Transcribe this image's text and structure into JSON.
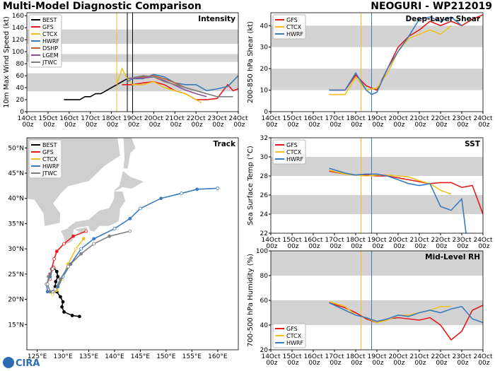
{
  "header": {
    "title": "Multi-Model Diagnostic Comparison",
    "storm": "NEOGURI - WP212019",
    "logo": "CIRA"
  },
  "chart_data": [
    {
      "type": "line",
      "title": "Intensity",
      "ylabel": "10m Max Wind Speed (kt)",
      "legend": "upper left",
      "xlim": [
        14,
        24
      ],
      "ylim": [
        0,
        165
      ],
      "xticks": [
        {
          "value": 14,
          "label": "14Oct 00z"
        },
        {
          "value": 15,
          "label": "15Oct 00z"
        },
        {
          "value": 16,
          "label": "16Oct 00z"
        },
        {
          "value": 17,
          "label": "17Oct 00z"
        },
        {
          "value": 18,
          "label": "18Oct 00z"
        },
        {
          "value": 19,
          "label": "19Oct 00z"
        },
        {
          "value": 20,
          "label": "20Oct 00z"
        },
        {
          "value": 21,
          "label": "21Oct 00z"
        },
        {
          "value": 22,
          "label": "22Oct 00z"
        },
        {
          "value": 23,
          "label": "23Oct 00z"
        },
        {
          "value": 24,
          "label": "24Oct 00z"
        }
      ],
      "yticks": [
        0,
        20,
        40,
        60,
        80,
        100,
        120,
        140,
        160
      ],
      "bands": [
        [
          34,
          64
        ],
        [
          83,
          96
        ],
        [
          113,
          137
        ]
      ],
      "vlines": [
        {
          "x": 18.25,
          "color": "#f0c020"
        },
        {
          "x": 18.75,
          "color": "#000000"
        },
        {
          "x": 19,
          "color": "#000000"
        }
      ],
      "series": [
        {
          "name": "BEST",
          "color": "#000000",
          "x": [
            15.75,
            16,
            16.25,
            16.5,
            16.75,
            17,
            17.25,
            17.5,
            17.75,
            18,
            18.25,
            18.5,
            18.75
          ],
          "values": [
            20,
            20,
            20,
            20,
            25,
            25,
            30,
            30,
            35,
            40,
            45,
            50,
            55
          ]
        },
        {
          "name": "GFS",
          "color": "#e41a1c",
          "x": [
            18.5,
            19,
            19.5,
            20,
            20.5,
            21,
            21.5,
            22,
            22.5,
            23,
            23.5,
            23.75,
            24
          ],
          "values": [
            45,
            45,
            48,
            50,
            45,
            35,
            30,
            20,
            20,
            22,
            45,
            35,
            38
          ]
        },
        {
          "name": "CTCX",
          "color": "#f0c020",
          "x": [
            18.25,
            18.5,
            18.75,
            19,
            19.5,
            20,
            20.5,
            21,
            21.5,
            22,
            22.25
          ],
          "values": [
            45,
            72,
            55,
            45,
            45,
            50,
            40,
            35,
            30,
            20,
            15
          ]
        },
        {
          "name": "HWRF",
          "color": "#3a7dbf",
          "x": [
            18.75,
            19,
            19.5,
            20,
            20.5,
            21,
            21.5,
            22,
            22.5,
            23,
            23.5,
            24
          ],
          "values": [
            50,
            55,
            55,
            62,
            58,
            48,
            45,
            45,
            35,
            38,
            42,
            60
          ]
        },
        {
          "name": "DSHP",
          "color": "#b8632b",
          "x": [
            18.75,
            19.5,
            20,
            20.5,
            21,
            21.5,
            22,
            22.5
          ],
          "values": [
            55,
            58,
            60,
            55,
            48,
            40,
            35,
            30
          ]
        },
        {
          "name": "LGEM",
          "color": "#8e4e9e",
          "x": [
            18.75,
            19.5,
            20,
            20.5,
            21,
            21.5,
            22,
            22.5
          ],
          "values": [
            55,
            56,
            58,
            52,
            44,
            36,
            30,
            25
          ]
        },
        {
          "name": "JTWC",
          "color": "#808080",
          "x": [
            18.75,
            19.5,
            20,
            20.5,
            21,
            21.5,
            22,
            22.5,
            23,
            23.75
          ],
          "values": [
            55,
            60,
            58,
            50,
            45,
            40,
            35,
            30,
            25,
            25
          ]
        }
      ]
    },
    {
      "type": "track",
      "title": "Track",
      "legend": "upper left",
      "xlim": [
        123,
        164
      ],
      "ylim": [
        10,
        52
      ],
      "xticks": [
        {
          "value": 125,
          "label": "125°E"
        },
        {
          "value": 130,
          "label": "130°E"
        },
        {
          "value": 135,
          "label": "135°E"
        },
        {
          "value": 140,
          "label": "140°E"
        },
        {
          "value": 145,
          "label": "145°E"
        },
        {
          "value": 150,
          "label": "150°E"
        },
        {
          "value": 155,
          "label": "155°E"
        },
        {
          "value": 160,
          "label": "160°E"
        }
      ],
      "yticks": [
        {
          "value": 15,
          "label": "15°N"
        },
        {
          "value": 20,
          "label": "20°N"
        },
        {
          "value": 25,
          "label": "25°N"
        },
        {
          "value": 30,
          "label": "30°N"
        },
        {
          "value": 35,
          "label": "35°N"
        },
        {
          "value": 40,
          "label": "40°N"
        },
        {
          "value": 45,
          "label": "45°N"
        },
        {
          "value": 50,
          "label": "50°N"
        }
      ],
      "series": [
        {
          "name": "BEST",
          "color": "#000000",
          "x": [
            133.2,
            131.8,
            130.2,
            129.8,
            130.0,
            129.5,
            128.8,
            128.5,
            128.6,
            129.0,
            128.8,
            128.2
          ],
          "values": [
            16.6,
            16.8,
            17.5,
            18.5,
            19.5,
            20.5,
            21.5,
            22.5,
            23.5,
            24.5,
            25.5,
            26.3
          ]
        },
        {
          "name": "GFS",
          "color": "#e41a1c",
          "x": [
            128.2,
            127.5,
            127.5,
            127.8,
            128.3,
            128.8,
            130.2,
            132,
            134.5
          ],
          "values": [
            26.3,
            25,
            24,
            26,
            28,
            29.5,
            31,
            32.5,
            33.5
          ]
        },
        {
          "name": "CTCX",
          "color": "#f0c020",
          "x": [
            128,
            127.3,
            127,
            127.5,
            128,
            128.8,
            129.8,
            131,
            132.5,
            134
          ],
          "values": [
            26,
            24.5,
            23,
            21.5,
            21,
            21.8,
            24,
            27,
            30,
            32
          ]
        },
        {
          "name": "HWRF",
          "color": "#3a7dbf",
          "x": [
            128,
            127.5,
            126.8,
            127,
            128,
            129,
            130,
            131.5,
            133.5,
            136,
            140,
            143,
            145,
            149,
            153,
            156,
            160
          ],
          "values": [
            26,
            24.5,
            23,
            21.5,
            21.5,
            22.5,
            24.5,
            27,
            30,
            32,
            34,
            36,
            38,
            40,
            41,
            41.8,
            42
          ]
        },
        {
          "name": "JTWC",
          "color": "#808080",
          "x": [
            128,
            127.2,
            127,
            127.5,
            128.5,
            129.5,
            131,
            133.5,
            136,
            139,
            143
          ],
          "values": [
            26,
            24.5,
            23,
            21.5,
            22,
            24,
            26.5,
            29,
            31,
            32.5,
            33.5
          ]
        }
      ]
    },
    {
      "type": "line",
      "title": "Deep-Layer Shear",
      "ylabel": "200-850 hPa Shear (kt)",
      "legend": "upper left",
      "xlim": [
        14,
        24
      ],
      "ylim": [
        0,
        46
      ],
      "xticks": [
        {
          "value": 14,
          "label": "14Oct 00z"
        },
        {
          "value": 15,
          "label": "15Oct 00z"
        },
        {
          "value": 16,
          "label": "16Oct 00z"
        },
        {
          "value": 17,
          "label": "17Oct 00z"
        },
        {
          "value": 18,
          "label": "18Oct 00z"
        },
        {
          "value": 19,
          "label": "19Oct 00z"
        },
        {
          "value": 20,
          "label": "20Oct 00z"
        },
        {
          "value": 21,
          "label": "21Oct 00z"
        },
        {
          "value": 22,
          "label": "22Oct 00z"
        },
        {
          "value": 23,
          "label": "23Oct 00z"
        },
        {
          "value": 24,
          "label": "24Oct 00z"
        }
      ],
      "yticks": [
        0,
        10,
        20,
        30,
        40
      ],
      "bands": [
        [
          10,
          20
        ],
        [
          30,
          40
        ]
      ],
      "vlines": [
        {
          "x": 18.25,
          "color": "#f0c020"
        },
        {
          "x": 18.75,
          "color": "#3a7dbf"
        }
      ],
      "series": [
        {
          "name": "GFS",
          "color": "#e41a1c",
          "x": [
            16.75,
            17.5,
            18,
            18.5,
            19,
            19.5,
            20,
            20.5,
            21,
            21.5,
            22,
            22.5,
            23,
            23.5,
            24
          ],
          "values": [
            10,
            10,
            17,
            12,
            10,
            20,
            30,
            35,
            38,
            42,
            40,
            42,
            40,
            43,
            45
          ]
        },
        {
          "name": "CTCX",
          "color": "#f0c020",
          "x": [
            16.75,
            17.5,
            18,
            18.5,
            19,
            19.5,
            20,
            20.5,
            21,
            21.5,
            22,
            22.5
          ],
          "values": [
            8,
            8,
            16,
            10,
            11,
            18,
            28,
            34,
            36,
            38,
            36,
            40
          ]
        },
        {
          "name": "HWRF",
          "color": "#3a7dbf",
          "x": [
            16.75,
            17.5,
            18,
            18.5,
            18.75,
            19,
            19.5,
            20,
            20.5,
            21,
            21.5,
            22,
            22.5,
            23
          ],
          "values": [
            10,
            10,
            18,
            10,
            8,
            9,
            20,
            28,
            35,
            43,
            44,
            42,
            44,
            40
          ]
        }
      ]
    },
    {
      "type": "line",
      "title": "SST",
      "ylabel": "Sea Surface Temp (°C)",
      "legend": "upper left",
      "xlim": [
        14,
        24
      ],
      "ylim": [
        22,
        32
      ],
      "xticks": [
        {
          "value": 14,
          "label": "14Oct 00z"
        },
        {
          "value": 15,
          "label": "15Oct 00z"
        },
        {
          "value": 16,
          "label": "16Oct 00z"
        },
        {
          "value": 17,
          "label": "17Oct 00z"
        },
        {
          "value": 18,
          "label": "18Oct 00z"
        },
        {
          "value": 19,
          "label": "19Oct 00z"
        },
        {
          "value": 20,
          "label": "20Oct 00z"
        },
        {
          "value": 21,
          "label": "21Oct 00z"
        },
        {
          "value": 22,
          "label": "22Oct 00z"
        },
        {
          "value": 23,
          "label": "23Oct 00z"
        },
        {
          "value": 24,
          "label": "24Oct 00z"
        }
      ],
      "yticks": [
        22,
        24,
        26,
        28,
        30,
        32
      ],
      "bands": [
        [
          24,
          26
        ],
        [
          28,
          30
        ]
      ],
      "vlines": [
        {
          "x": 18.25,
          "color": "#f0c020"
        },
        {
          "x": 18.75,
          "color": "#3a7dbf"
        }
      ],
      "series": [
        {
          "name": "GFS",
          "color": "#e41a1c",
          "x": [
            16.75,
            17.5,
            18,
            18.5,
            19,
            19.5,
            20,
            20.5,
            21,
            21.5,
            22,
            22.5,
            23,
            23.5,
            24
          ],
          "values": [
            28.5,
            28.2,
            28.1,
            28.1,
            28.0,
            28.0,
            27.8,
            27.6,
            27.4,
            27.2,
            27.3,
            27.3,
            26.8,
            27.0,
            24.0
          ]
        },
        {
          "name": "CTCX",
          "color": "#f0c020",
          "x": [
            16.75,
            17.5,
            18,
            18.5,
            19,
            19.5,
            20,
            20.5,
            21,
            21.5,
            22,
            22.5
          ],
          "values": [
            28.6,
            28.2,
            28.1,
            28.0,
            28.1,
            28.1,
            28.0,
            27.9,
            27.5,
            27.2,
            26.5,
            26.1
          ]
        },
        {
          "name": "HWRF",
          "color": "#3a7dbf",
          "x": [
            16.75,
            17.5,
            18,
            18.5,
            19,
            19.5,
            20,
            20.5,
            21,
            21.5,
            22,
            22.5,
            23,
            23.2
          ],
          "values": [
            28.8,
            28.3,
            28.1,
            28.2,
            28.2,
            28.0,
            27.6,
            27.2,
            27.0,
            27.2,
            24.8,
            24.4,
            25.6,
            22
          ]
        }
      ]
    },
    {
      "type": "line",
      "title": "Mid-Level RH",
      "ylabel": "700-500 hPa Humidity (%)",
      "legend": "lower left",
      "xlim": [
        14,
        24
      ],
      "ylim": [
        20,
        100
      ],
      "xticks": [
        {
          "value": 14,
          "label": "14Oct 00z"
        },
        {
          "value": 15,
          "label": "15Oct 00z"
        },
        {
          "value": 16,
          "label": "16Oct 00z"
        },
        {
          "value": 17,
          "label": "17Oct 00z"
        },
        {
          "value": 18,
          "label": "18Oct 00z"
        },
        {
          "value": 19,
          "label": "19Oct 00z"
        },
        {
          "value": 20,
          "label": "20Oct 00z"
        },
        {
          "value": 21,
          "label": "21Oct 00z"
        },
        {
          "value": 22,
          "label": "22Oct 00z"
        },
        {
          "value": 23,
          "label": "23Oct 00z"
        },
        {
          "value": 24,
          "label": "24Oct 00z"
        }
      ],
      "yticks": [
        20,
        40,
        60,
        80,
        100
      ],
      "bands": [
        [
          40,
          60
        ],
        [
          80,
          100
        ]
      ],
      "vlines": [
        {
          "x": 18.25,
          "color": "#f0c020"
        },
        {
          "x": 18.75,
          "color": "#3a7dbf"
        }
      ],
      "series": [
        {
          "name": "GFS",
          "color": "#e41a1c",
          "x": [
            16.75,
            17.5,
            18,
            18.5,
            19,
            19.5,
            20,
            20.5,
            21,
            21.5,
            22,
            22.5,
            23,
            23.5,
            24
          ],
          "values": [
            58,
            54,
            50,
            45,
            42,
            45,
            46,
            45,
            44,
            46,
            40,
            28,
            35,
            52,
            56
          ]
        },
        {
          "name": "CTCX",
          "color": "#f0c020",
          "x": [
            16.75,
            17.5,
            18,
            18.5,
            19,
            19.5,
            20,
            20.5,
            21,
            21.5,
            22,
            22.5
          ],
          "values": [
            59,
            55,
            48,
            46,
            42,
            44,
            48,
            48,
            50,
            52,
            55,
            55
          ]
        },
        {
          "name": "HWRF",
          "color": "#3a7dbf",
          "x": [
            16.75,
            17.5,
            18,
            18.5,
            19,
            19.5,
            20,
            20.5,
            21,
            21.5,
            22,
            22.5,
            23,
            23.5,
            24
          ],
          "values": [
            58,
            52,
            48,
            46,
            43,
            45,
            48,
            47,
            50,
            52,
            50,
            53,
            55,
            45,
            42
          ]
        }
      ]
    }
  ]
}
